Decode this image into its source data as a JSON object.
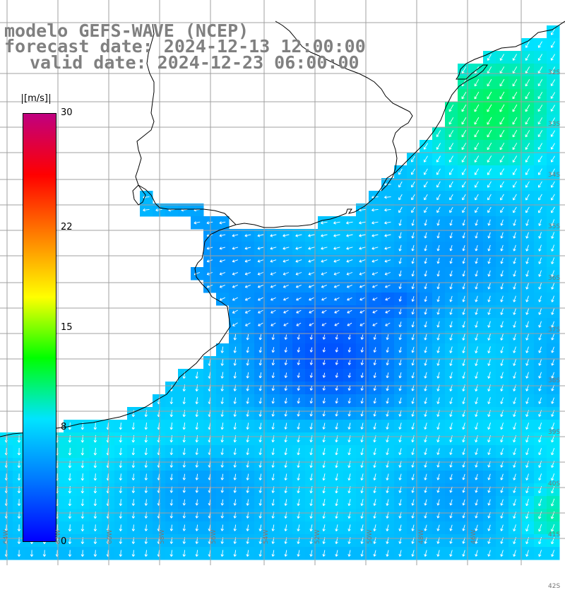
{
  "header": {
    "line1": "modelo GEFS-WAVE (NCEP)",
    "line2": "forecast date: 2024-12-13 12:00:00",
    "line3": "valid date: 2024-12-23 06:00:00"
  },
  "colorbar": {
    "unit": "[m/s]",
    "ticks": [
      {
        "label": "30",
        "value": 30
      },
      {
        "label": "22",
        "value": 22
      },
      {
        "label": "15",
        "value": 15
      },
      {
        "label": "8",
        "value": 8
      },
      {
        "label": "0",
        "value": 0
      }
    ],
    "min": 0,
    "max": 30,
    "colors": [
      "#0000ff",
      "#0078ff",
      "#00e4ff",
      "#00ff00",
      "#ffff00",
      "#ff8000",
      "#ff0000",
      "#c00080"
    ]
  },
  "map": {
    "lon_labels": [
      "64W",
      "62W",
      "60W",
      "58W",
      "56W",
      "54W",
      "52W",
      "50W",
      "48W",
      "46W"
    ],
    "lat_labels": [
      "32S",
      "33S",
      "34S",
      "35S",
      "36S",
      "37S",
      "38S",
      "39S",
      "40S",
      "41S",
      "42S"
    ],
    "land_color": "#ffffff",
    "grid_color": "#a0a0a0",
    "coast_color": "#000000"
  }
}
